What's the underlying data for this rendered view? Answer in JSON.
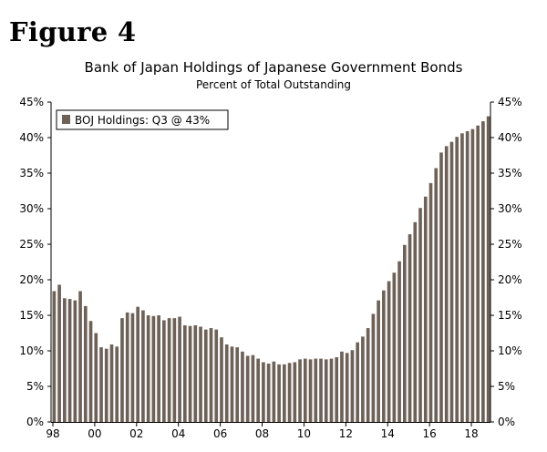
{
  "figure_label": "Figure 4",
  "chart_data": {
    "type": "bar",
    "title": "Bank of Japan Holdings of Japanese Government Bonds",
    "subtitle": "Percent of Total Outstanding",
    "xlabel": "",
    "ylabel": "",
    "ylim": [
      0,
      45
    ],
    "y_ticks": [
      "0%",
      "5%",
      "10%",
      "15%",
      "20%",
      "25%",
      "30%",
      "35%",
      "40%",
      "45%"
    ],
    "y_tick_values": [
      0,
      5,
      10,
      15,
      20,
      25,
      30,
      35,
      40,
      45
    ],
    "x_tick_labels": [
      "98",
      "00",
      "02",
      "04",
      "06",
      "08",
      "10",
      "12",
      "14",
      "16",
      "18"
    ],
    "x_start": "1998 Q1",
    "bar_color": "#6e6258",
    "grid": false,
    "legend_position": "top-left",
    "series": [
      {
        "name": "BOJ Holdings: Q3 @ 43%",
        "values": [
          18.4,
          19.3,
          17.4,
          17.3,
          17.1,
          18.4,
          16.3,
          14.2,
          12.5,
          10.5,
          10.3,
          10.9,
          10.6,
          14.6,
          15.4,
          15.3,
          16.2,
          15.7,
          15.0,
          14.9,
          15.0,
          14.3,
          14.6,
          14.6,
          14.8,
          13.6,
          13.5,
          13.6,
          13.4,
          13.0,
          13.2,
          13.0,
          11.9,
          10.9,
          10.6,
          10.5,
          9.9,
          9.3,
          9.4,
          8.9,
          8.4,
          8.2,
          8.5,
          8.1,
          8.1,
          8.3,
          8.4,
          8.8,
          8.9,
          8.8,
          8.9,
          8.9,
          8.8,
          8.9,
          9.1,
          9.9,
          9.7,
          10.1,
          11.2,
          12.0,
          13.2,
          15.2,
          17.1,
          18.5,
          19.8,
          21.0,
          22.6,
          24.9,
          26.4,
          28.1,
          30.1,
          31.7,
          33.6,
          35.7,
          37.9,
          38.8,
          39.4,
          40.1,
          40.6,
          40.9,
          41.2,
          41.7,
          42.3,
          43.0
        ]
      }
    ]
  }
}
